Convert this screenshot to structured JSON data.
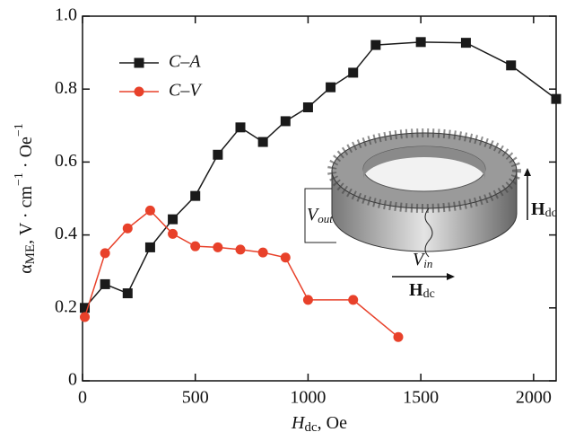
{
  "chart_data": {
    "type": "line",
    "x_label": [
      "H",
      "dc",
      ", Oe"
    ],
    "y_label": [
      "α",
      "ME",
      ", V · cm",
      "−1",
      " · Oe",
      "−1"
    ],
    "xlim": [
      0,
      2100
    ],
    "xticks": [
      0,
      500,
      1000,
      1500,
      2000
    ],
    "ylim": [
      0,
      1
    ],
    "yticks": [
      0,
      0.2,
      0.4,
      0.6,
      0.8,
      {
        "value": 1,
        "label": "1.0"
      }
    ],
    "legend": "upper left",
    "series": [
      {
        "name": "C–A",
        "color": "#1a1a1a",
        "marker": "square",
        "x": [
          10,
          100,
          200,
          300,
          400,
          500,
          600,
          700,
          800,
          900,
          1000,
          1100,
          1200,
          1300,
          1500,
          1700,
          1900,
          2100
        ],
        "values": [
          0.2,
          0.265,
          0.24,
          0.366,
          0.443,
          0.507,
          0.62,
          0.695,
          0.655,
          0.712,
          0.75,
          0.805,
          0.845,
          0.921,
          0.929,
          0.927,
          0.865,
          0.773
        ]
      },
      {
        "name": "C–V",
        "color": "#e8412a",
        "marker": "circle",
        "x": [
          10,
          100,
          200,
          300,
          400,
          500,
          600,
          700,
          800,
          900,
          1000,
          1200,
          1400
        ],
        "values": [
          0.175,
          0.35,
          0.418,
          0.467,
          0.403,
          0.369,
          0.366,
          0.36,
          0.352,
          0.338,
          0.222,
          0.222,
          0.12
        ]
      }
    ],
    "inset": {
      "v_out": [
        "V",
        "out"
      ],
      "v_in": [
        "V",
        "in"
      ],
      "h_bottom": [
        "H",
        "dc"
      ],
      "h_right": [
        "H",
        "dc"
      ]
    }
  }
}
